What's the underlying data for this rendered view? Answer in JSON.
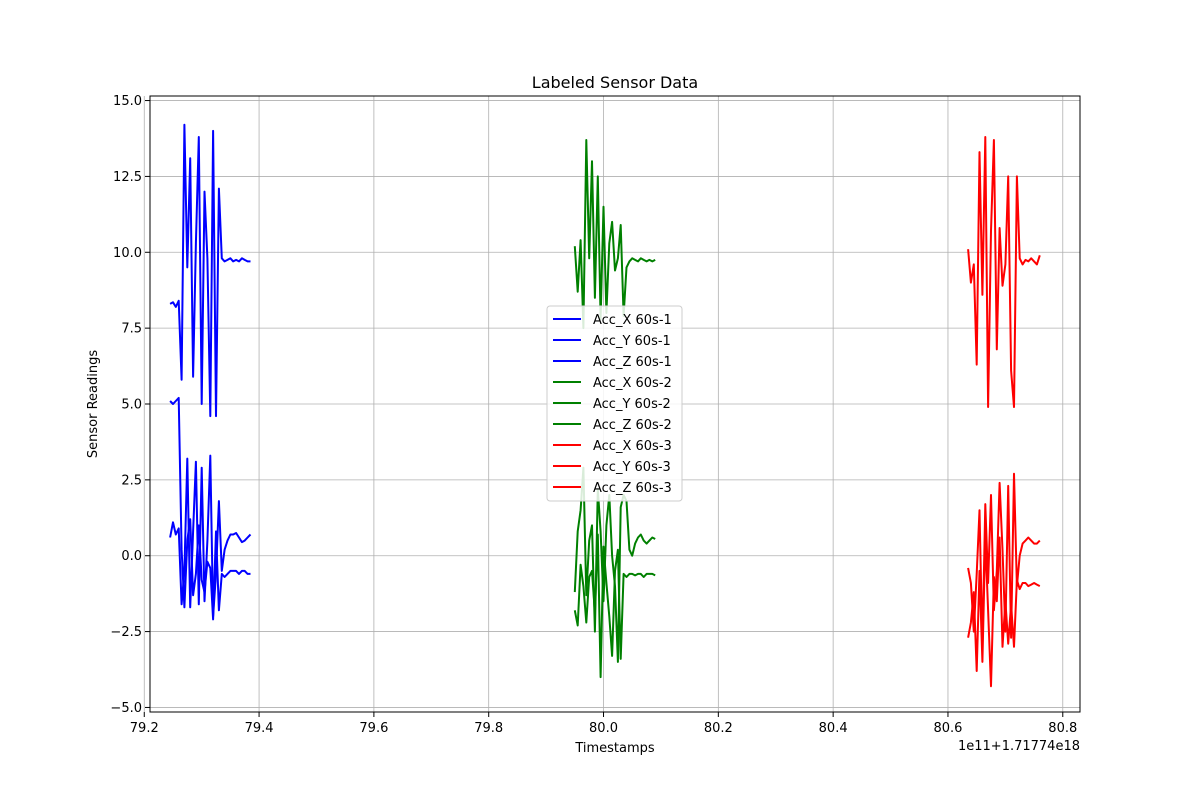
{
  "chart_data": {
    "type": "line",
    "title": "Labeled Sensor Data",
    "xlabel": "Timestamps",
    "ylabel": "Sensor Readings",
    "offset_text": "1e11+1.71774e18",
    "xlim": [
      79.21,
      80.83
    ],
    "ylim": [
      -5.15,
      15.15
    ],
    "xticks": [
      79.2,
      79.4,
      79.6,
      79.8,
      80.0,
      80.2,
      80.4,
      80.6,
      80.8
    ],
    "xtick_labels": [
      "79.2",
      "79.4",
      "79.6",
      "79.8",
      "80.0",
      "80.2",
      "80.4",
      "80.6",
      "80.8"
    ],
    "yticks": [
      -5.0,
      -2.5,
      0.0,
      2.5,
      5.0,
      7.5,
      10.0,
      12.5,
      15.0
    ],
    "ytick_labels": [
      "−5.0",
      "−2.5",
      "0.0",
      "2.5",
      "5.0",
      "7.5",
      "10.0",
      "12.5",
      "15.0"
    ],
    "grid": true,
    "legend_position": "center",
    "colors": {
      "blue": "#0000ff",
      "green": "#008000",
      "red": "#ff0000"
    },
    "series": [
      {
        "name": "Acc_X 60s-1",
        "color": "#0000ff",
        "x": [
          79.245,
          79.25,
          79.255,
          79.26,
          79.265,
          79.27,
          79.275,
          79.28,
          79.285,
          79.29,
          79.295,
          79.3,
          79.305,
          79.31,
          79.315,
          79.32,
          79.325,
          79.33,
          79.335,
          79.34,
          79.345,
          79.35,
          79.355,
          79.36,
          79.365,
          79.37,
          79.375,
          79.38,
          79.385
        ],
        "y": [
          0.6,
          1.1,
          0.7,
          0.9,
          -1.6,
          -0.5,
          3.2,
          -1.7,
          0.8,
          3.1,
          -1.6,
          2.9,
          -1.5,
          0.5,
          3.3,
          -2.0,
          -0.6,
          1.8,
          -0.5,
          0.2,
          0.5,
          0.7,
          0.7,
          0.75,
          0.6,
          0.45,
          0.5,
          0.6,
          0.7
        ]
      },
      {
        "name": "Acc_Y 60s-1",
        "color": "#0000ff",
        "x": [
          79.245,
          79.25,
          79.255,
          79.26,
          79.265,
          79.27,
          79.275,
          79.28,
          79.285,
          79.29,
          79.295,
          79.3,
          79.305,
          79.31,
          79.315,
          79.32,
          79.325,
          79.33,
          79.335,
          79.34,
          79.345,
          79.35,
          79.355,
          79.36,
          79.365,
          79.37,
          79.375,
          79.38,
          79.385
        ],
        "y": [
          5.1,
          5.0,
          5.1,
          5.2,
          0.2,
          -1.7,
          0.5,
          1.2,
          -1.3,
          -0.6,
          1.0,
          -0.8,
          -1.2,
          -0.2,
          -0.4,
          -2.1,
          0.8,
          -1.8,
          -0.6,
          -0.7,
          -0.6,
          -0.5,
          -0.5,
          -0.5,
          -0.6,
          -0.5,
          -0.5,
          -0.6,
          -0.6
        ]
      },
      {
        "name": "Acc_Z 60s-1",
        "color": "#0000ff",
        "x": [
          79.245,
          79.25,
          79.255,
          79.26,
          79.265,
          79.27,
          79.275,
          79.28,
          79.285,
          79.29,
          79.295,
          79.3,
          79.305,
          79.31,
          79.315,
          79.32,
          79.325,
          79.33,
          79.335,
          79.34,
          79.345,
          79.35,
          79.355,
          79.36,
          79.365,
          79.37,
          79.375,
          79.38,
          79.385
        ],
        "y": [
          8.3,
          8.35,
          8.2,
          8.4,
          5.8,
          14.2,
          9.5,
          13.1,
          5.9,
          10.3,
          13.8,
          5.0,
          12.0,
          9.8,
          4.6,
          14.0,
          4.6,
          12.1,
          9.8,
          9.7,
          9.75,
          9.8,
          9.7,
          9.75,
          9.7,
          9.8,
          9.75,
          9.7,
          9.7
        ]
      },
      {
        "name": "Acc_X 60s-2",
        "color": "#008000",
        "x": [
          79.95,
          79.955,
          79.96,
          79.965,
          79.97,
          79.975,
          79.98,
          79.985,
          79.99,
          79.995,
          80.0,
          80.005,
          80.01,
          80.015,
          80.02,
          80.025,
          80.03,
          80.035,
          80.04,
          80.045,
          80.05,
          80.055,
          80.06,
          80.065,
          80.07,
          80.075,
          80.08,
          80.085,
          80.09
        ],
        "y": [
          -1.2,
          0.8,
          1.5,
          2.9,
          -1.3,
          0.5,
          1.0,
          -2.5,
          2.2,
          0.8,
          -1.5,
          1.0,
          2.0,
          0.0,
          -1.0,
          -3.5,
          1.6,
          2.0,
          1.8,
          0.2,
          0.0,
          0.4,
          0.6,
          0.7,
          0.5,
          0.4,
          0.5,
          0.6,
          0.55
        ]
      },
      {
        "name": "Acc_Y 60s-2",
        "color": "#008000",
        "x": [
          79.95,
          79.955,
          79.96,
          79.965,
          79.97,
          79.975,
          79.98,
          79.985,
          79.99,
          79.995,
          80.0,
          80.005,
          80.01,
          80.015,
          80.02,
          80.025,
          80.03,
          80.035,
          80.04,
          80.045,
          80.05,
          80.055,
          80.06,
          80.065,
          80.07,
          80.075,
          80.08,
          80.085,
          80.09
        ],
        "y": [
          -1.8,
          -2.3,
          -0.3,
          -1.0,
          -2.2,
          -0.7,
          -0.5,
          -1.9,
          0.7,
          -4.0,
          0.3,
          -0.9,
          -2.0,
          -3.3,
          -0.5,
          0.2,
          -3.4,
          -0.6,
          -0.7,
          -0.6,
          -0.6,
          -0.65,
          -0.6,
          -0.6,
          -0.7,
          -0.6,
          -0.6,
          -0.6,
          -0.65
        ]
      },
      {
        "name": "Acc_Z 60s-2",
        "color": "#008000",
        "x": [
          79.95,
          79.955,
          79.96,
          79.965,
          79.97,
          79.975,
          79.98,
          79.985,
          79.99,
          79.995,
          80.0,
          80.005,
          80.01,
          80.015,
          80.02,
          80.025,
          80.03,
          80.035,
          80.04,
          80.045,
          80.05,
          80.055,
          80.06,
          80.065,
          80.07,
          80.075,
          80.08,
          80.085,
          80.09
        ],
        "y": [
          10.2,
          8.7,
          10.4,
          7.5,
          13.7,
          9.8,
          13.0,
          8.5,
          12.5,
          7.8,
          11.5,
          8.0,
          10.3,
          11.0,
          9.4,
          9.8,
          10.9,
          7.9,
          9.5,
          9.7,
          9.8,
          9.75,
          9.7,
          9.8,
          9.75,
          9.7,
          9.75,
          9.7,
          9.75
        ]
      },
      {
        "name": "Acc_X 60s-3",
        "color": "#ff0000",
        "x": [
          80.635,
          80.64,
          80.645,
          80.65,
          80.655,
          80.66,
          80.665,
          80.67,
          80.675,
          80.68,
          80.685,
          80.69,
          80.695,
          80.7,
          80.705,
          80.71,
          80.715,
          80.72,
          80.725,
          80.73,
          80.735,
          80.74,
          80.745,
          80.75,
          80.755,
          80.76
        ],
        "y": [
          -0.4,
          -0.9,
          -2.5,
          -0.6,
          1.5,
          -3.0,
          1.7,
          -0.9,
          2.0,
          -1.8,
          -0.5,
          2.4,
          0.2,
          -2.5,
          2.3,
          -2.7,
          2.7,
          -1.0,
          0.0,
          0.4,
          0.5,
          0.6,
          0.5,
          0.4,
          0.4,
          0.5
        ]
      },
      {
        "name": "Acc_Y 60s-3",
        "color": "#ff0000",
        "x": [
          80.635,
          80.64,
          80.645,
          80.65,
          80.655,
          80.66,
          80.665,
          80.67,
          80.675,
          80.68,
          80.685,
          80.69,
          80.695,
          80.7,
          80.705,
          80.71,
          80.715,
          80.72,
          80.725,
          80.73,
          80.735,
          80.74,
          80.745,
          80.75,
          80.755,
          80.76
        ],
        "y": [
          -2.7,
          -2.2,
          -1.2,
          -3.8,
          -0.5,
          -3.5,
          0.6,
          -1.8,
          -4.3,
          -0.7,
          -1.5,
          0.6,
          -3.0,
          -1.5,
          -2.9,
          -1.6,
          -3.0,
          -0.8,
          -1.1,
          -0.9,
          -0.9,
          -1.0,
          -0.95,
          -0.9,
          -0.95,
          -1.0
        ]
      },
      {
        "name": "Acc_Z 60s-3",
        "color": "#ff0000",
        "x": [
          80.635,
          80.64,
          80.645,
          80.65,
          80.655,
          80.66,
          80.665,
          80.67,
          80.675,
          80.68,
          80.685,
          80.69,
          80.695,
          80.7,
          80.705,
          80.71,
          80.715,
          80.72,
          80.725,
          80.73,
          80.735,
          80.74,
          80.745,
          80.75,
          80.755,
          80.76
        ],
        "y": [
          10.1,
          9.0,
          9.6,
          6.3,
          13.3,
          8.6,
          13.8,
          4.9,
          10.7,
          13.7,
          6.8,
          10.8,
          8.9,
          9.6,
          12.5,
          6.1,
          4.9,
          12.5,
          9.8,
          9.6,
          9.75,
          9.7,
          9.8,
          9.7,
          9.6,
          9.9
        ]
      }
    ]
  }
}
